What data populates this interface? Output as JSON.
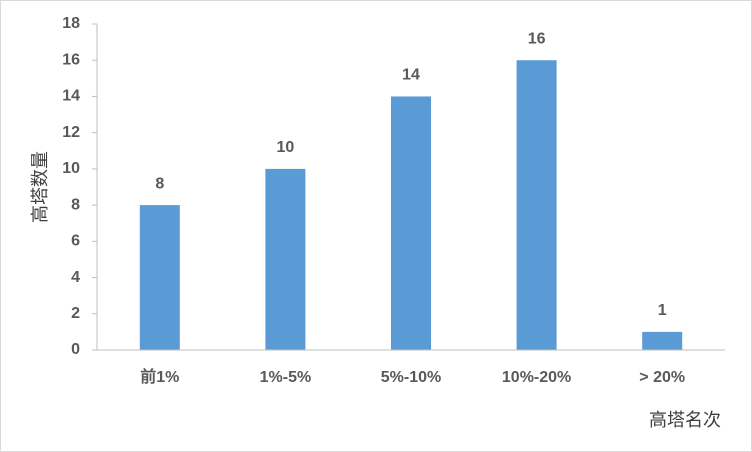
{
  "chart_data": {
    "type": "bar",
    "y_label": "高塔数量",
    "x_label": "高塔名次",
    "categories": [
      "前1%",
      "1%-5%",
      "5%-10%",
      "10%-20%",
      "> 20%"
    ],
    "values": [
      8,
      10,
      14,
      16,
      1
    ],
    "color": "#5b9bd5",
    "ylim": [
      0,
      18
    ],
    "yticks": [
      0,
      2,
      4,
      6,
      8,
      10,
      12,
      14,
      16,
      18
    ],
    "data_labels": true
  }
}
